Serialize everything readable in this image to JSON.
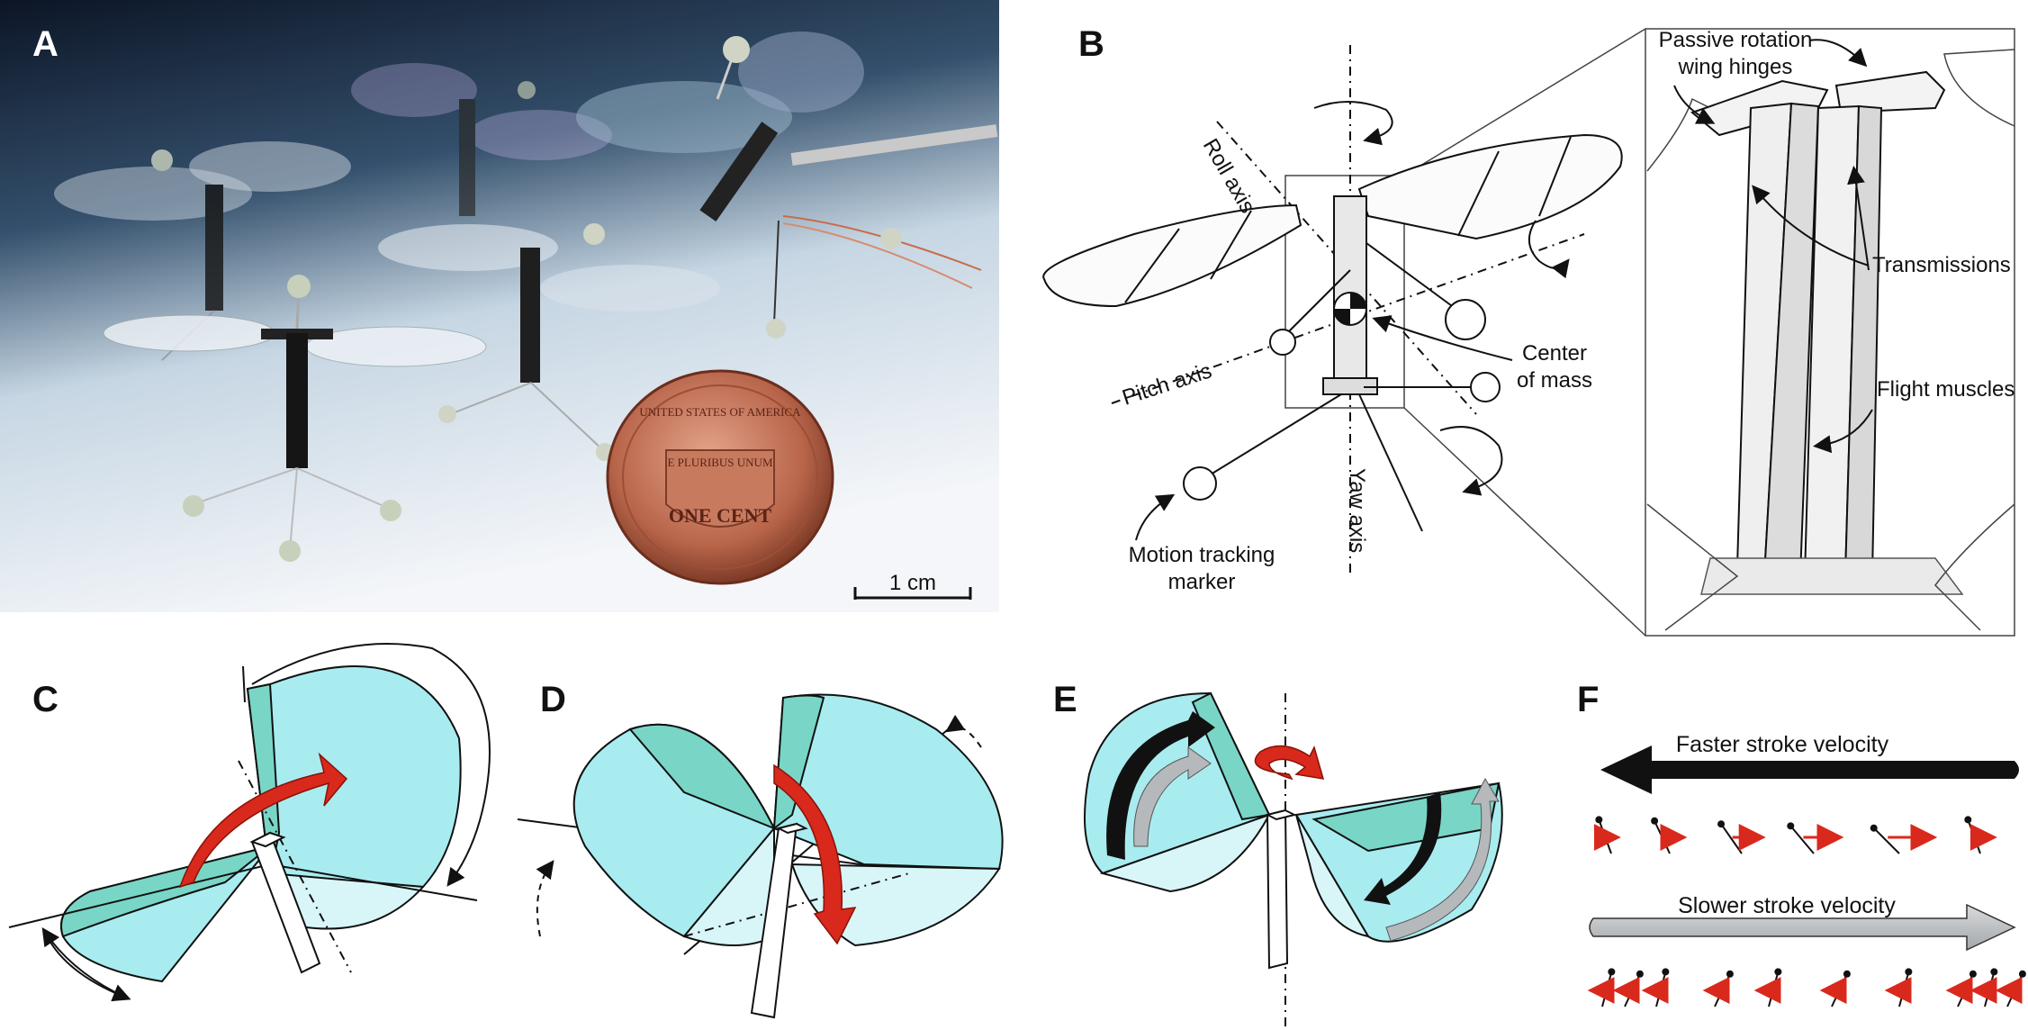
{
  "panels": {
    "A": {
      "label": "A",
      "scale_bar": "1 cm",
      "coin": {
        "top": "UNITED STATES OF AMERICA",
        "banner": "E PLURIBUS UNUM",
        "bottom": "ONE CENT"
      }
    },
    "B": {
      "label": "B",
      "roll_axis": "Roll axis",
      "pitch_axis": "Pitch axis",
      "yaw_axis": "Yaw axis",
      "center_of_mass_1": "Center",
      "center_of_mass_2": "of mass",
      "motion_marker_1": "Motion tracking",
      "motion_marker_2": "marker",
      "hinges_1": "Passive rotation",
      "hinges_2": "wing hinges",
      "transmissions": "Transmissions",
      "flight_muscles": "Flight muscles"
    },
    "C": {
      "label": "C"
    },
    "D": {
      "label": "D"
    },
    "E": {
      "label": "E"
    },
    "F": {
      "label": "F",
      "faster": "Faster stroke velocity",
      "slower": "Slower stroke velocity"
    }
  },
  "colors": {
    "wing": "#a8ecf0",
    "wing_shade": "#79d6c6",
    "torque_arrow": "#d9291c",
    "slow_arrow": "#b5b9bb"
  },
  "icons": [
    "red-torque-arrow-icon",
    "stroke-direction-arrow-icon",
    "rotation-arrow-icon"
  ]
}
